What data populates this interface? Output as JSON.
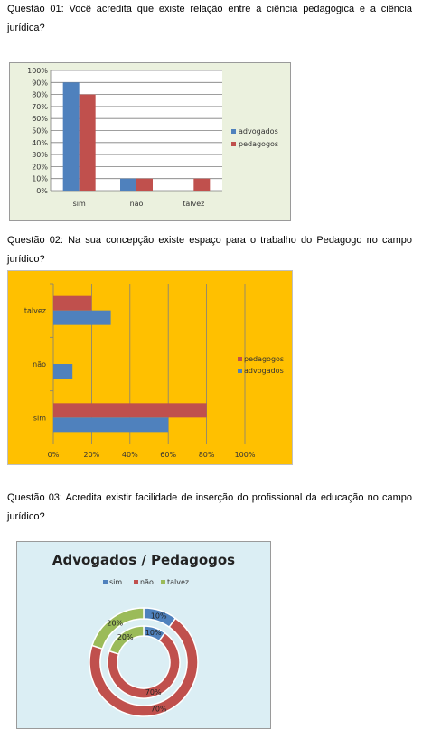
{
  "questions": {
    "q1": "Questão 01: Você acredita que existe relação entre a ciência pedagógica e a ciência jurídica?",
    "q2": "Questão 02: Na sua concepção existe espaço para o trabalho do Pedagogo no campo jurídico?",
    "q3": "Questão 03: Acredita existir facilidade de inserção do profissional da educação no campo jurídico?"
  },
  "colors": {
    "advogados": "#4f81bd",
    "pedagogos": "#c0504d",
    "talvez": "#9bbb59"
  },
  "chart_data": [
    {
      "type": "bar",
      "categories": [
        "sim",
        "não",
        "talvez"
      ],
      "series": [
        {
          "name": "advogados",
          "values": [
            90,
            10,
            0
          ]
        },
        {
          "name": "pedagogos",
          "values": [
            80,
            10,
            10
          ]
        }
      ],
      "yticks": [
        "0%",
        "10%",
        "20%",
        "30%",
        "40%",
        "50%",
        "60%",
        "70%",
        "80%",
        "90%",
        "100%"
      ],
      "ylim": [
        0,
        100
      ],
      "legend": "right",
      "grid": true,
      "background": "#ebf1de"
    },
    {
      "type": "bar",
      "orientation": "horizontal",
      "categories": [
        "sim",
        "não",
        "talvez"
      ],
      "series": [
        {
          "name": "pedagogos",
          "values": [
            80,
            0,
            20
          ]
        },
        {
          "name": "advogados",
          "values": [
            60,
            10,
            30
          ]
        }
      ],
      "xticks": [
        "0%",
        "20%",
        "40%",
        "60%",
        "80%",
        "100%"
      ],
      "xlim": [
        0,
        100
      ],
      "legend": "right",
      "grid": true,
      "background": "#ffc000"
    },
    {
      "type": "pie",
      "title": "Advogados / Pedagogos",
      "legend_entries": [
        "sim",
        "não",
        "talvez"
      ],
      "rings": [
        {
          "name": "Pedagogos",
          "values": [
            10,
            70,
            20
          ],
          "labels": [
            "10%",
            "70%",
            "20%"
          ]
        },
        {
          "name": "Advogados",
          "values": [
            10,
            70,
            20
          ],
          "labels": [
            "10%",
            "70%",
            "20%"
          ]
        }
      ],
      "legend": "top",
      "background": "#dbeef4"
    }
  ]
}
